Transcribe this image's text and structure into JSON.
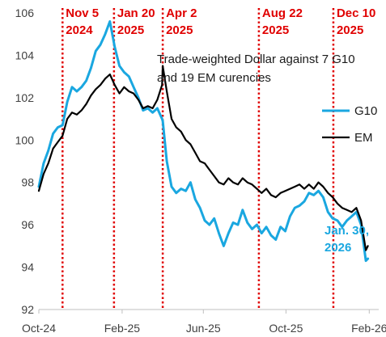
{
  "chart_data": {
    "type": "line",
    "title": "",
    "xlabel": "",
    "ylabel": "",
    "annotation_lines": [
      "Trade-weighted Dollar against 7 G10",
      "and 19 EM curencies"
    ],
    "ylim": [
      92,
      106
    ],
    "yticks": [
      92,
      94,
      96,
      98,
      100,
      102,
      104,
      106
    ],
    "xlim": [
      "2024-10-01",
      "2026-02-15"
    ],
    "xticks": [
      {
        "date": "2024-10-01",
        "label": "Oct-24"
      },
      {
        "date": "2025-02-01",
        "label": "Feb-25"
      },
      {
        "date": "2025-06-01",
        "label": "Jun-25"
      },
      {
        "date": "2025-10-01",
        "label": "Oct-25"
      },
      {
        "date": "2026-02-01",
        "label": "Feb-26"
      }
    ],
    "events": [
      {
        "date": "2024-11-05",
        "line1": "Nov 5",
        "line2": "2024"
      },
      {
        "date": "2025-01-20",
        "line1": "Jan 20",
        "line2": "2025"
      },
      {
        "date": "2025-04-02",
        "line1": "Apr 2",
        "line2": "2025"
      },
      {
        "date": "2025-08-22",
        "line1": "Aug 22",
        "line2": "2025"
      },
      {
        "date": "2025-12-10",
        "line1": "Dec 10",
        "line2": "2025"
      }
    ],
    "end_label": [
      "Jan. 30,",
      "2026"
    ],
    "legend_position": "right",
    "colors": {
      "G10": "#1aa7e0",
      "EM": "#000000",
      "events": "#e00000"
    },
    "series": [
      {
        "name": "G10",
        "points": [
          [
            "2024-10-01",
            97.8
          ],
          [
            "2024-10-08",
            98.9
          ],
          [
            "2024-10-15",
            99.5
          ],
          [
            "2024-10-22",
            100.3
          ],
          [
            "2024-10-29",
            100.6
          ],
          [
            "2024-11-05",
            100.7
          ],
          [
            "2024-11-12",
            101.8
          ],
          [
            "2024-11-19",
            102.5
          ],
          [
            "2024-11-26",
            102.3
          ],
          [
            "2024-12-03",
            102.5
          ],
          [
            "2024-12-10",
            102.8
          ],
          [
            "2024-12-17",
            103.4
          ],
          [
            "2024-12-24",
            104.2
          ],
          [
            "2024-12-31",
            104.5
          ],
          [
            "2025-01-07",
            105.0
          ],
          [
            "2025-01-14",
            105.6
          ],
          [
            "2025-01-21",
            104.4
          ],
          [
            "2025-01-28",
            103.5
          ],
          [
            "2025-02-04",
            103.2
          ],
          [
            "2025-02-11",
            103.0
          ],
          [
            "2025-02-18",
            102.5
          ],
          [
            "2025-02-25",
            102.0
          ],
          [
            "2025-03-04",
            101.4
          ],
          [
            "2025-03-11",
            101.5
          ],
          [
            "2025-03-18",
            101.3
          ],
          [
            "2025-03-25",
            101.5
          ],
          [
            "2025-04-01",
            101.0
          ],
          [
            "2025-04-02",
            100.9
          ],
          [
            "2025-04-08",
            99.0
          ],
          [
            "2025-04-15",
            97.8
          ],
          [
            "2025-04-22",
            97.5
          ],
          [
            "2025-04-29",
            97.7
          ],
          [
            "2025-05-06",
            97.6
          ],
          [
            "2025-05-13",
            98.0
          ],
          [
            "2025-05-20",
            97.2
          ],
          [
            "2025-05-27",
            96.8
          ],
          [
            "2025-06-03",
            96.2
          ],
          [
            "2025-06-10",
            96.0
          ],
          [
            "2025-06-17",
            96.3
          ],
          [
            "2025-06-24",
            95.6
          ],
          [
            "2025-07-01",
            95.0
          ],
          [
            "2025-07-08",
            95.6
          ],
          [
            "2025-07-15",
            96.1
          ],
          [
            "2025-07-22",
            96.0
          ],
          [
            "2025-07-29",
            96.7
          ],
          [
            "2025-08-05",
            96.1
          ],
          [
            "2025-08-12",
            95.8
          ],
          [
            "2025-08-19",
            96.0
          ],
          [
            "2025-08-26",
            95.6
          ],
          [
            "2025-09-02",
            95.9
          ],
          [
            "2025-09-09",
            95.5
          ],
          [
            "2025-09-16",
            95.3
          ],
          [
            "2025-09-23",
            95.9
          ],
          [
            "2025-09-30",
            95.7
          ],
          [
            "2025-10-07",
            96.4
          ],
          [
            "2025-10-14",
            96.8
          ],
          [
            "2025-10-21",
            96.9
          ],
          [
            "2025-10-28",
            97.1
          ],
          [
            "2025-11-04",
            97.5
          ],
          [
            "2025-11-11",
            97.4
          ],
          [
            "2025-11-18",
            97.6
          ],
          [
            "2025-11-25",
            97.3
          ],
          [
            "2025-12-02",
            96.6
          ],
          [
            "2025-12-09",
            96.3
          ],
          [
            "2025-12-16",
            96.2
          ],
          [
            "2025-12-23",
            95.9
          ],
          [
            "2025-12-30",
            96.2
          ],
          [
            "2026-01-06",
            96.4
          ],
          [
            "2026-01-13",
            96.6
          ],
          [
            "2026-01-20",
            96.0
          ],
          [
            "2026-01-27",
            94.3
          ],
          [
            "2026-01-30",
            94.4
          ]
        ]
      },
      {
        "name": "EM",
        "points": [
          [
            "2024-10-01",
            97.6
          ],
          [
            "2024-10-08",
            98.4
          ],
          [
            "2024-10-15",
            98.9
          ],
          [
            "2024-10-22",
            99.6
          ],
          [
            "2024-10-29",
            99.9
          ],
          [
            "2024-11-05",
            100.2
          ],
          [
            "2024-11-12",
            101.0
          ],
          [
            "2024-11-19",
            101.3
          ],
          [
            "2024-11-26",
            101.2
          ],
          [
            "2024-12-03",
            101.4
          ],
          [
            "2024-12-10",
            101.7
          ],
          [
            "2024-12-17",
            102.1
          ],
          [
            "2024-12-24",
            102.4
          ],
          [
            "2024-12-31",
            102.6
          ],
          [
            "2025-01-07",
            102.9
          ],
          [
            "2025-01-14",
            103.1
          ],
          [
            "2025-01-21",
            102.6
          ],
          [
            "2025-01-28",
            102.2
          ],
          [
            "2025-02-04",
            102.5
          ],
          [
            "2025-02-11",
            102.3
          ],
          [
            "2025-02-18",
            102.2
          ],
          [
            "2025-02-25",
            101.9
          ],
          [
            "2025-03-04",
            101.5
          ],
          [
            "2025-03-11",
            101.6
          ],
          [
            "2025-03-18",
            101.5
          ],
          [
            "2025-03-25",
            101.9
          ],
          [
            "2025-04-01",
            102.6
          ],
          [
            "2025-04-02",
            103.5
          ],
          [
            "2025-04-08",
            102.3
          ],
          [
            "2025-04-15",
            101.0
          ],
          [
            "2025-04-22",
            100.6
          ],
          [
            "2025-04-29",
            100.4
          ],
          [
            "2025-05-06",
            100.0
          ],
          [
            "2025-05-13",
            99.8
          ],
          [
            "2025-05-20",
            99.4
          ],
          [
            "2025-05-27",
            99.0
          ],
          [
            "2025-06-03",
            98.9
          ],
          [
            "2025-06-10",
            98.6
          ],
          [
            "2025-06-17",
            98.3
          ],
          [
            "2025-06-24",
            98.0
          ],
          [
            "2025-07-01",
            97.9
          ],
          [
            "2025-07-08",
            98.2
          ],
          [
            "2025-07-15",
            98.0
          ],
          [
            "2025-07-22",
            97.9
          ],
          [
            "2025-07-29",
            98.2
          ],
          [
            "2025-08-05",
            98.0
          ],
          [
            "2025-08-12",
            97.9
          ],
          [
            "2025-08-19",
            97.7
          ],
          [
            "2025-08-26",
            97.5
          ],
          [
            "2025-09-02",
            97.7
          ],
          [
            "2025-09-09",
            97.4
          ],
          [
            "2025-09-16",
            97.3
          ],
          [
            "2025-09-23",
            97.5
          ],
          [
            "2025-09-30",
            97.6
          ],
          [
            "2025-10-07",
            97.7
          ],
          [
            "2025-10-14",
            97.8
          ],
          [
            "2025-10-21",
            97.9
          ],
          [
            "2025-10-28",
            97.7
          ],
          [
            "2025-11-04",
            97.9
          ],
          [
            "2025-11-11",
            97.7
          ],
          [
            "2025-11-18",
            98.0
          ],
          [
            "2025-11-25",
            97.8
          ],
          [
            "2025-12-02",
            97.5
          ],
          [
            "2025-12-09",
            97.3
          ],
          [
            "2025-12-16",
            97.0
          ],
          [
            "2025-12-23",
            96.8
          ],
          [
            "2025-12-30",
            96.7
          ],
          [
            "2026-01-06",
            96.6
          ],
          [
            "2026-01-13",
            96.8
          ],
          [
            "2026-01-20",
            96.2
          ],
          [
            "2026-01-27",
            94.8
          ],
          [
            "2026-01-30",
            95.0
          ]
        ]
      }
    ]
  }
}
